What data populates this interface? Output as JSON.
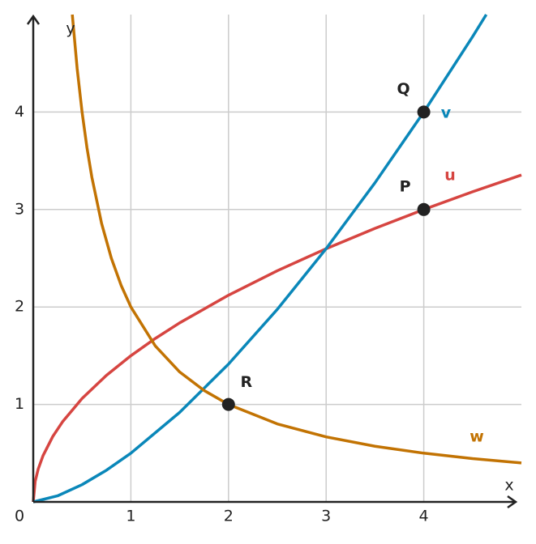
{
  "chart_data": {
    "type": "line",
    "x_label": "x",
    "y_label": "y",
    "xlim": [
      0,
      5
    ],
    "ylim": [
      0,
      5
    ],
    "xticks": [
      0,
      1,
      2,
      3,
      4
    ],
    "yticks": [
      1,
      2,
      3,
      4
    ],
    "grid": true,
    "series": [
      {
        "name": "u",
        "color": "#d64541",
        "x": [
          0,
          0.02,
          0.05,
          0.1,
          0.2,
          0.3,
          0.5,
          0.75,
          1,
          1.25,
          1.5,
          2,
          2.5,
          3,
          3.5,
          4,
          4.5,
          5
        ],
        "values": [
          0,
          0.212,
          0.335,
          0.474,
          0.671,
          0.822,
          1.061,
          1.299,
          1.5,
          1.677,
          1.837,
          2.121,
          2.372,
          2.598,
          2.806,
          3,
          3.182,
          3.354
        ]
      },
      {
        "name": "v",
        "color": "#0a87b9",
        "x": [
          0,
          0.25,
          0.5,
          0.75,
          1,
          1.5,
          2,
          2.5,
          3,
          3.5,
          4,
          4.5,
          4.64
        ],
        "values": [
          0,
          0.0625,
          0.177,
          0.325,
          0.5,
          0.919,
          1.414,
          1.976,
          2.598,
          3.274,
          4,
          4.773,
          5
        ]
      },
      {
        "name": "w",
        "color": "#c27303",
        "x": [
          0.4,
          0.45,
          0.5,
          0.55,
          0.6,
          0.7,
          0.8,
          0.9,
          1,
          1.25,
          1.5,
          1.75,
          2,
          2.5,
          3,
          3.5,
          4,
          4.5,
          5
        ],
        "values": [
          5,
          4.444,
          4,
          3.636,
          3.333,
          2.857,
          2.5,
          2.222,
          2,
          1.6,
          1.333,
          1.143,
          1,
          0.8,
          0.667,
          0.571,
          0.5,
          0.444,
          0.4
        ]
      }
    ],
    "points": [
      {
        "label": "Q",
        "x": 4,
        "y": 4
      },
      {
        "label": "P",
        "x": 4,
        "y": 3
      },
      {
        "label": "R",
        "x": 2,
        "y": 1
      }
    ]
  }
}
